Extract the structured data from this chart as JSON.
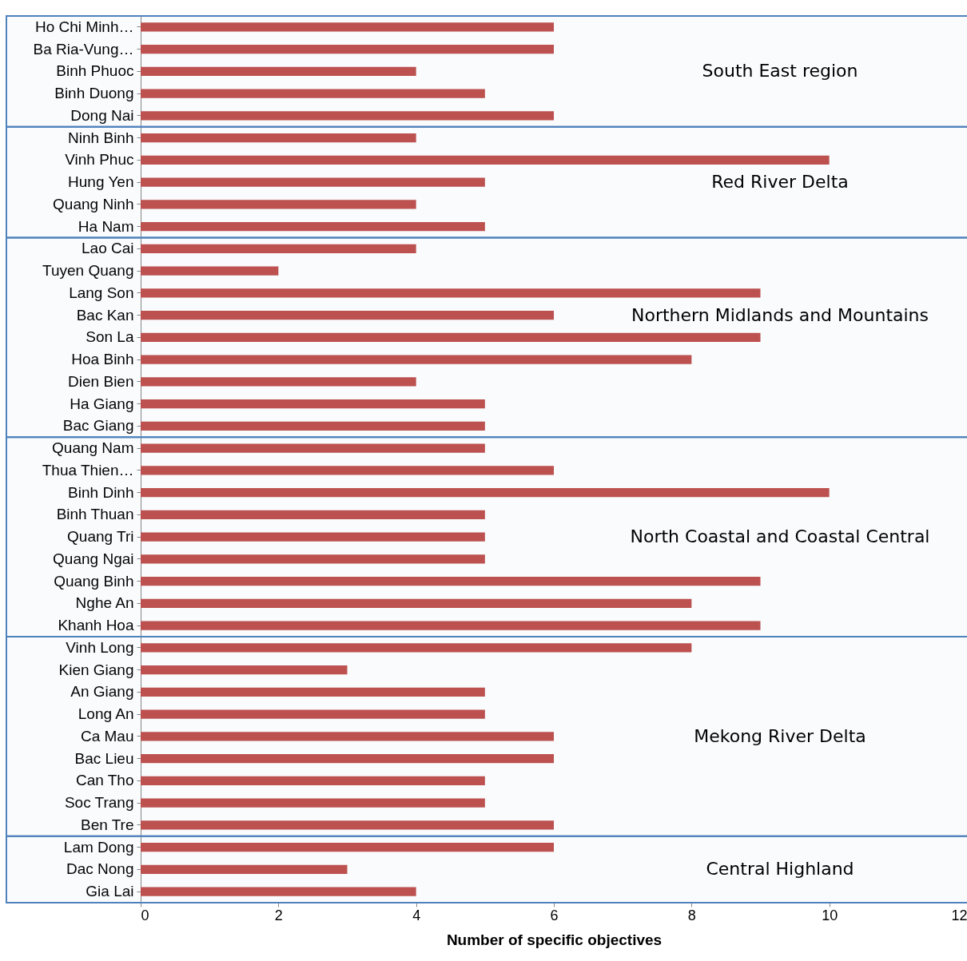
{
  "chart_data": {
    "type": "bar",
    "orientation": "horizontal",
    "xlabel": "Number of specific objectives",
    "categories": [
      "Ho Chi Minh…",
      "Ba Ria-Vung…",
      "Binh Phuoc",
      "Binh Duong",
      "Dong Nai",
      "Ninh Binh",
      "Vinh Phuc",
      "Hung Yen",
      "Quang Ninh",
      "Ha Nam",
      "Lao Cai",
      "Tuyen Quang",
      "Lang Son",
      "Bac Kan",
      "Son La",
      "Hoa Binh",
      "Dien Bien",
      "Ha Giang",
      "Bac Giang",
      "Quang Nam",
      "Thua Thien…",
      "Binh Dinh",
      "Binh Thuan",
      "Quang Tri",
      "Quang Ngai",
      "Quang Binh",
      "Nghe An",
      "Khanh Hoa",
      "Vinh Long",
      "Kien Giang",
      "An Giang",
      "Long An",
      "Ca Mau",
      "Bac Lieu",
      "Can Tho",
      "Soc Trang",
      "Ben Tre",
      "Lam Dong",
      "Dac Nong",
      "Gia Lai"
    ],
    "values": [
      6,
      6,
      4,
      5,
      6,
      4,
      10,
      5,
      4,
      5,
      4,
      2,
      9,
      6,
      9,
      8,
      4,
      5,
      5,
      5,
      6,
      10,
      5,
      5,
      5,
      9,
      8,
      9,
      8,
      3,
      5,
      5,
      6,
      6,
      5,
      5,
      6,
      6,
      3,
      4
    ],
    "color": "#c0504d",
    "xlim": [
      0,
      12
    ],
    "xticks": [
      0,
      2,
      4,
      6,
      8,
      10,
      12
    ],
    "grid": false,
    "bands": [
      {
        "axis": "y",
        "from": "Ho Chi Minh…",
        "to": "Dong Nai",
        "label": "South East region",
        "color": "#4f81bd"
      },
      {
        "axis": "y",
        "from": "Ninh Binh",
        "to": "Ha Nam",
        "label": "Red River Delta",
        "color": "#4f81bd"
      },
      {
        "axis": "y",
        "from": "Lao Cai",
        "to": "Bac Giang",
        "label": "Northern Midlands and Mountains",
        "color": "#4f81bd"
      },
      {
        "axis": "y",
        "from": "Quang Nam",
        "to": "Khanh Hoa",
        "label": "North Coastal and Coastal Central",
        "color": "#4f81bd"
      },
      {
        "axis": "y",
        "from": "Vinh Long",
        "to": "Ben Tre",
        "label": "Mekong River Delta",
        "color": "#4f81bd"
      },
      {
        "axis": "y",
        "from": "Lam Dong",
        "to": "Gia Lai",
        "label": "Central Highland",
        "color": "#4f81bd"
      }
    ]
  }
}
